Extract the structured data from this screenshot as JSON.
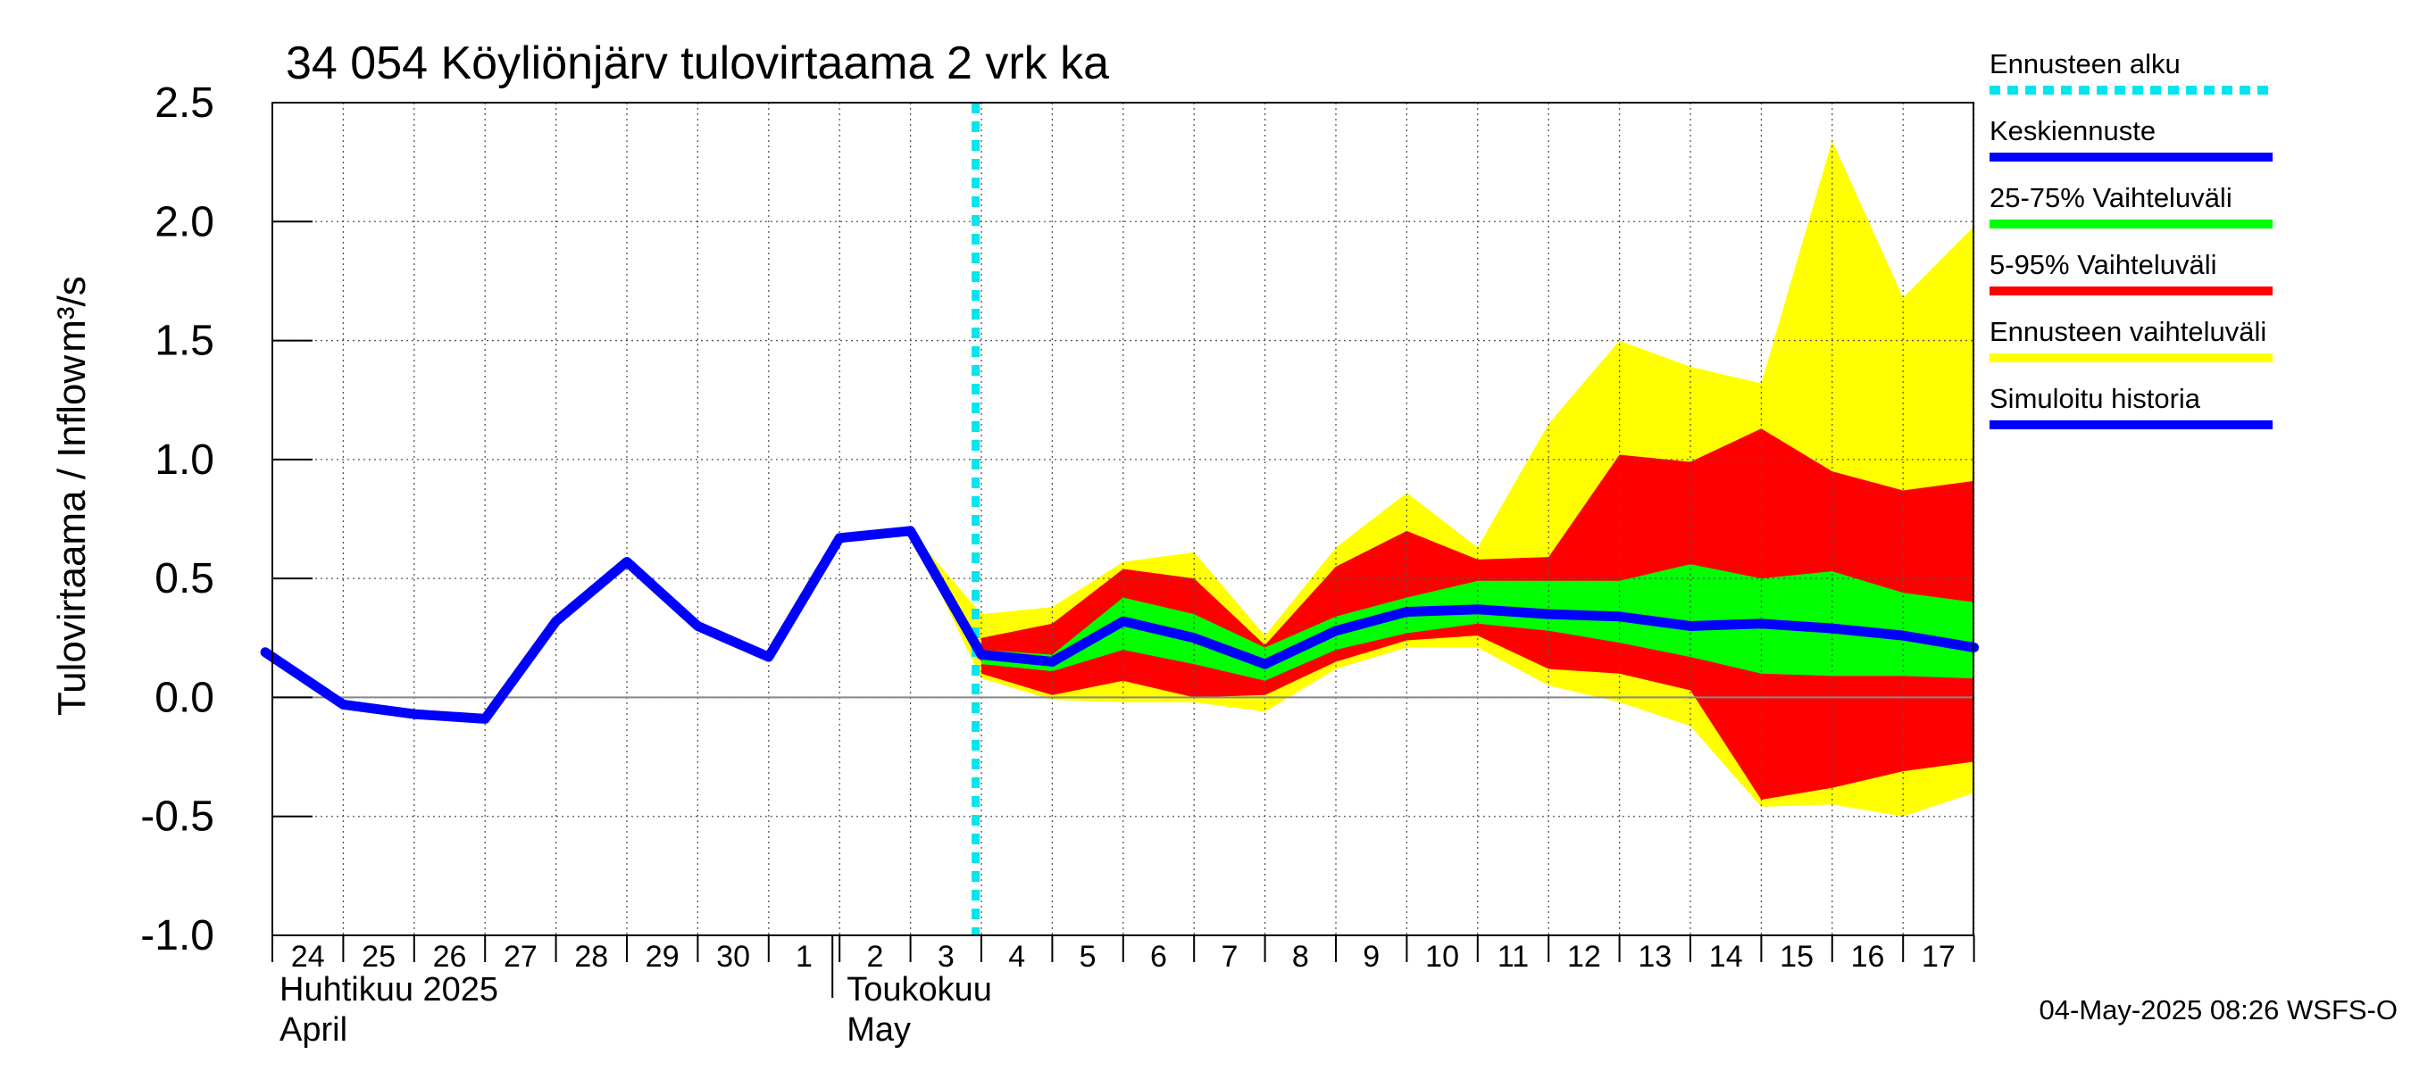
{
  "chart_data": {
    "type": "area",
    "title": "34 054 Köyliönjärv tulovirtaama 2 vrk ka",
    "ylabel_left": "Tulovirtaama / Inflow",
    "ylabel_unit": "m³/s",
    "ylim": [
      -1.0,
      2.5
    ],
    "yticks": [
      "2.5",
      "2.0",
      "1.5",
      "1.0",
      "0.5",
      "0.0",
      "-0.5",
      "-1.0"
    ],
    "ytick_values": [
      2.5,
      2.0,
      1.5,
      1.0,
      0.5,
      0.0,
      -0.5,
      -1.0
    ],
    "grid": true,
    "x_days": [
      "24",
      "25",
      "26",
      "27",
      "28",
      "29",
      "30",
      "1",
      "2",
      "3",
      "4",
      "5",
      "6",
      "7",
      "8",
      "9",
      "10",
      "11",
      "12",
      "13",
      "14",
      "15",
      "16",
      "17"
    ],
    "month_labels": [
      {
        "line1": "Huhtikuu  2025",
        "line2": "April",
        "start_day_index": 0
      },
      {
        "line1": "Toukokuu",
        "line2": "May",
        "start_day_index": 8
      }
    ],
    "forecast_start_day_index": 9.92,
    "series": [
      {
        "name": "Simuloitu historia",
        "color": "#0000ff",
        "x": [
          -0.1,
          1,
          2,
          3,
          4,
          5,
          6,
          7,
          8,
          9,
          10
        ],
        "y": [
          0.19,
          -0.03,
          -0.07,
          -0.09,
          0.32,
          0.57,
          0.3,
          0.17,
          0.67,
          0.7,
          0.18
        ]
      },
      {
        "name": "Keskiennuste",
        "color": "#0000ff",
        "x": [
          10,
          11,
          12,
          13,
          14,
          15,
          16,
          17,
          18,
          19,
          20,
          21,
          22,
          23,
          24
        ],
        "y": [
          0.18,
          0.15,
          0.32,
          0.25,
          0.14,
          0.28,
          0.36,
          0.37,
          0.35,
          0.34,
          0.3,
          0.31,
          0.29,
          0.26,
          0.21
        ]
      },
      {
        "name": "25-75% Vaihteluväli",
        "color": "#00ff00",
        "x": [
          10,
          11,
          12,
          13,
          14,
          15,
          16,
          17,
          18,
          19,
          20,
          21,
          22,
          23,
          24
        ],
        "low": [
          0.14,
          0.11,
          0.2,
          0.14,
          0.07,
          0.2,
          0.27,
          0.31,
          0.28,
          0.23,
          0.17,
          0.1,
          0.09,
          0.09,
          0.08
        ],
        "high": [
          0.2,
          0.18,
          0.42,
          0.35,
          0.21,
          0.34,
          0.42,
          0.49,
          0.49,
          0.49,
          0.56,
          0.5,
          0.53,
          0.44,
          0.4
        ]
      },
      {
        "name": "5-95% Vaihteluväli",
        "color": "#ff0000",
        "x": [
          10,
          11,
          12,
          13,
          14,
          15,
          16,
          17,
          18,
          19,
          20,
          21,
          22,
          23,
          24
        ],
        "low": [
          0.1,
          0.01,
          0.07,
          0.0,
          0.01,
          0.15,
          0.24,
          0.26,
          0.12,
          0.1,
          0.03,
          -0.43,
          -0.38,
          -0.31,
          -0.27
        ],
        "high": [
          0.25,
          0.31,
          0.54,
          0.5,
          0.22,
          0.55,
          0.7,
          0.58,
          0.59,
          1.02,
          0.99,
          1.13,
          0.95,
          0.87,
          0.91
        ]
      },
      {
        "name": "Ennusteen vaihteluväli",
        "color": "#ffff00",
        "x": [
          9,
          10,
          11,
          12,
          13,
          14,
          15,
          16,
          17,
          18,
          19,
          20,
          21,
          22,
          23,
          24
        ],
        "low": [
          0.7,
          0.08,
          -0.01,
          -0.02,
          -0.02,
          -0.06,
          0.12,
          0.21,
          0.21,
          0.05,
          -0.02,
          -0.12,
          -0.46,
          -0.45,
          -0.5,
          -0.4
        ],
        "high": [
          0.7,
          0.35,
          0.38,
          0.57,
          0.61,
          0.26,
          0.63,
          0.86,
          0.63,
          1.15,
          1.5,
          1.39,
          1.32,
          2.34,
          1.68,
          1.98
        ]
      }
    ],
    "legend": [
      {
        "label": "Ennusteen alku",
        "color": "#00e5ee",
        "style": "dotted"
      },
      {
        "label": "Keskiennuste",
        "color": "#0000ff",
        "style": "solid"
      },
      {
        "label": "25-75% Vaihteluväli",
        "color": "#00ff00",
        "style": "solid"
      },
      {
        "label": "5-95% Vaihteluväli",
        "color": "#ff0000",
        "style": "solid"
      },
      {
        "label": "Ennusteen vaihteluväli",
        "color": "#ffff00",
        "style": "solid"
      },
      {
        "label": "Simuloitu historia",
        "color": "#0000ff",
        "style": "solid"
      }
    ],
    "footer": "04-May-2025 08:26 WSFS-O"
  }
}
